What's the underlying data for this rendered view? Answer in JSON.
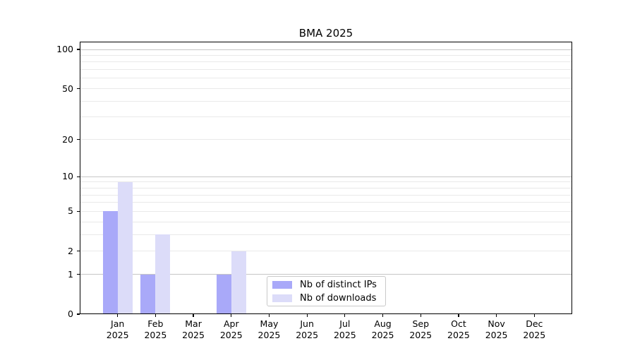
{
  "figure_title": "BMA 2025",
  "chart_data": {
    "type": "bar",
    "title": "BMA 2025",
    "categories": [
      "Jan",
      "Feb",
      "Mar",
      "Apr",
      "May",
      "Jun",
      "Jul",
      "Aug",
      "Sep",
      "Oct",
      "Nov",
      "Dec"
    ],
    "x_tick_year": "2025",
    "series": [
      {
        "name": "Nb of distinct IPs",
        "color": "#a9a9f9",
        "values": [
          5,
          1,
          0,
          1,
          0,
          0,
          0,
          0,
          0,
          0,
          0,
          0
        ]
      },
      {
        "name": "Nb of downloads",
        "color": "#dcdcf9",
        "values": [
          9,
          3,
          0,
          2,
          0,
          0,
          0,
          0,
          0,
          0,
          0,
          0
        ]
      }
    ],
    "xlabel": "",
    "ylabel": "",
    "yscale": "log1p",
    "ylim": [
      0,
      115
    ],
    "y_tick_values": [
      0,
      1,
      2,
      5,
      10,
      20,
      50,
      100
    ],
    "y_tick_labels": [
      "0",
      "1",
      "2",
      "5",
      "10",
      "20",
      "50",
      "100"
    ],
    "y_major_gridlines": [
      1,
      10,
      100
    ],
    "y_minor_gridlines": [
      3,
      4,
      6,
      7,
      8,
      9,
      30,
      40,
      60,
      70,
      80,
      90
    ],
    "grid": "horizontal",
    "legend_position": "lower center"
  },
  "colors": {
    "background": "#ffffff",
    "axis": "#000000",
    "grid_major": "#c6c6c6",
    "grid_minor": "#e9e9e9",
    "legend_border": "#c9c9c9",
    "bar_distinct_ips": "#a9a9f9",
    "bar_downloads": "#dcdcf9"
  }
}
